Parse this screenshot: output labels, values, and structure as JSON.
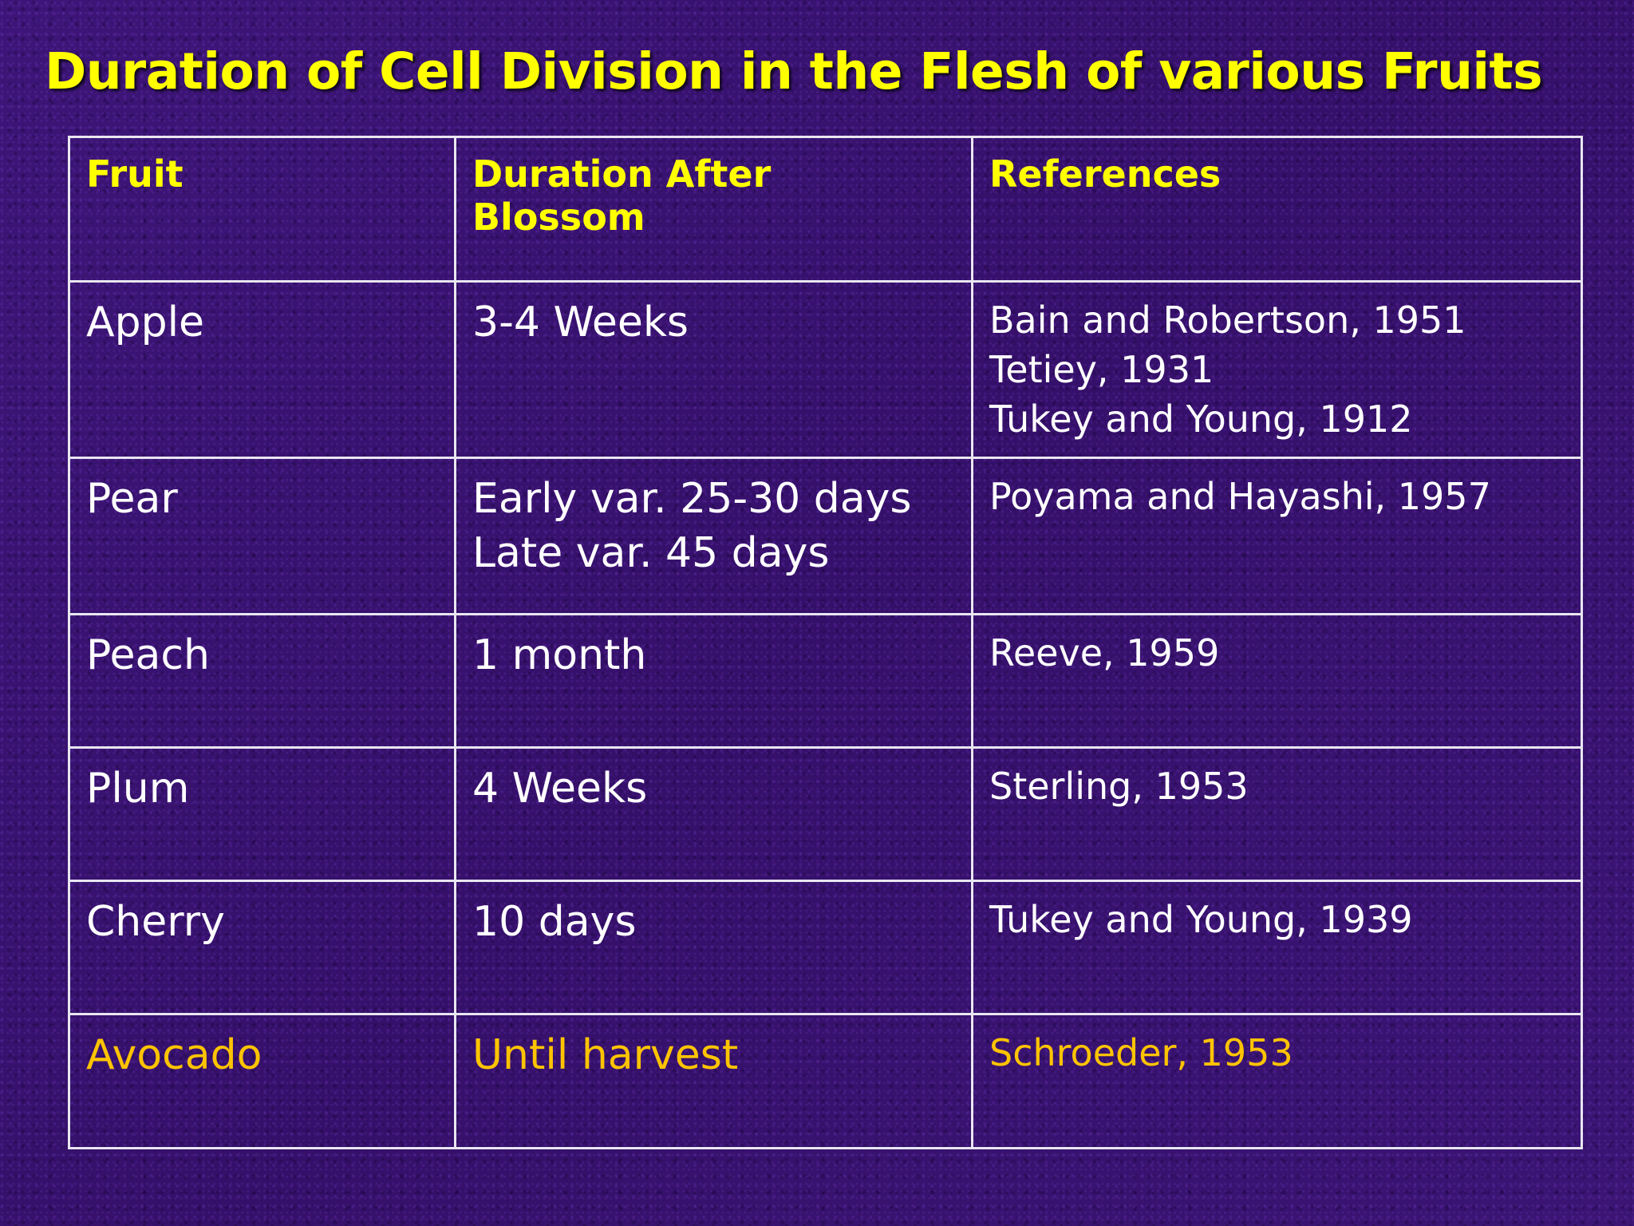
{
  "slide": {
    "title": "Duration of Cell Division in the Flesh of various Fruits"
  },
  "table": {
    "headers": [
      "Fruit",
      "Duration After Blossom",
      "References"
    ],
    "rows": [
      {
        "fruit": "Apple",
        "duration": [
          "3-4 Weeks"
        ],
        "references": [
          "Bain and Robertson, 1951",
          "Tetiey, 1931",
          "Tukey and Young, 1912"
        ]
      },
      {
        "fruit": "Pear",
        "duration": [
          "Early var. 25-30 days",
          "Late var. 45 days"
        ],
        "references": [
          "Poyama and Hayashi, 1957"
        ]
      },
      {
        "fruit": "Peach",
        "duration": [
          "1 month"
        ],
        "references": [
          "Reeve, 1959"
        ]
      },
      {
        "fruit": "Plum",
        "duration": [
          "4 Weeks"
        ],
        "references": [
          "Sterling, 1953"
        ]
      },
      {
        "fruit": "Cherry",
        "duration": [
          "10 days"
        ],
        "references": [
          "Tukey and Young, 1939"
        ]
      },
      {
        "fruit": "Avocado",
        "duration": [
          "Until harvest"
        ],
        "references": [
          "Schroeder, 1953"
        ]
      }
    ]
  },
  "colors": {
    "background": "#3a1470",
    "title": "#ffff00",
    "header_text": "#ffff00",
    "body_text": "#ffffff",
    "highlight_text": "#ffc400",
    "grid": "#e8e6f0"
  }
}
